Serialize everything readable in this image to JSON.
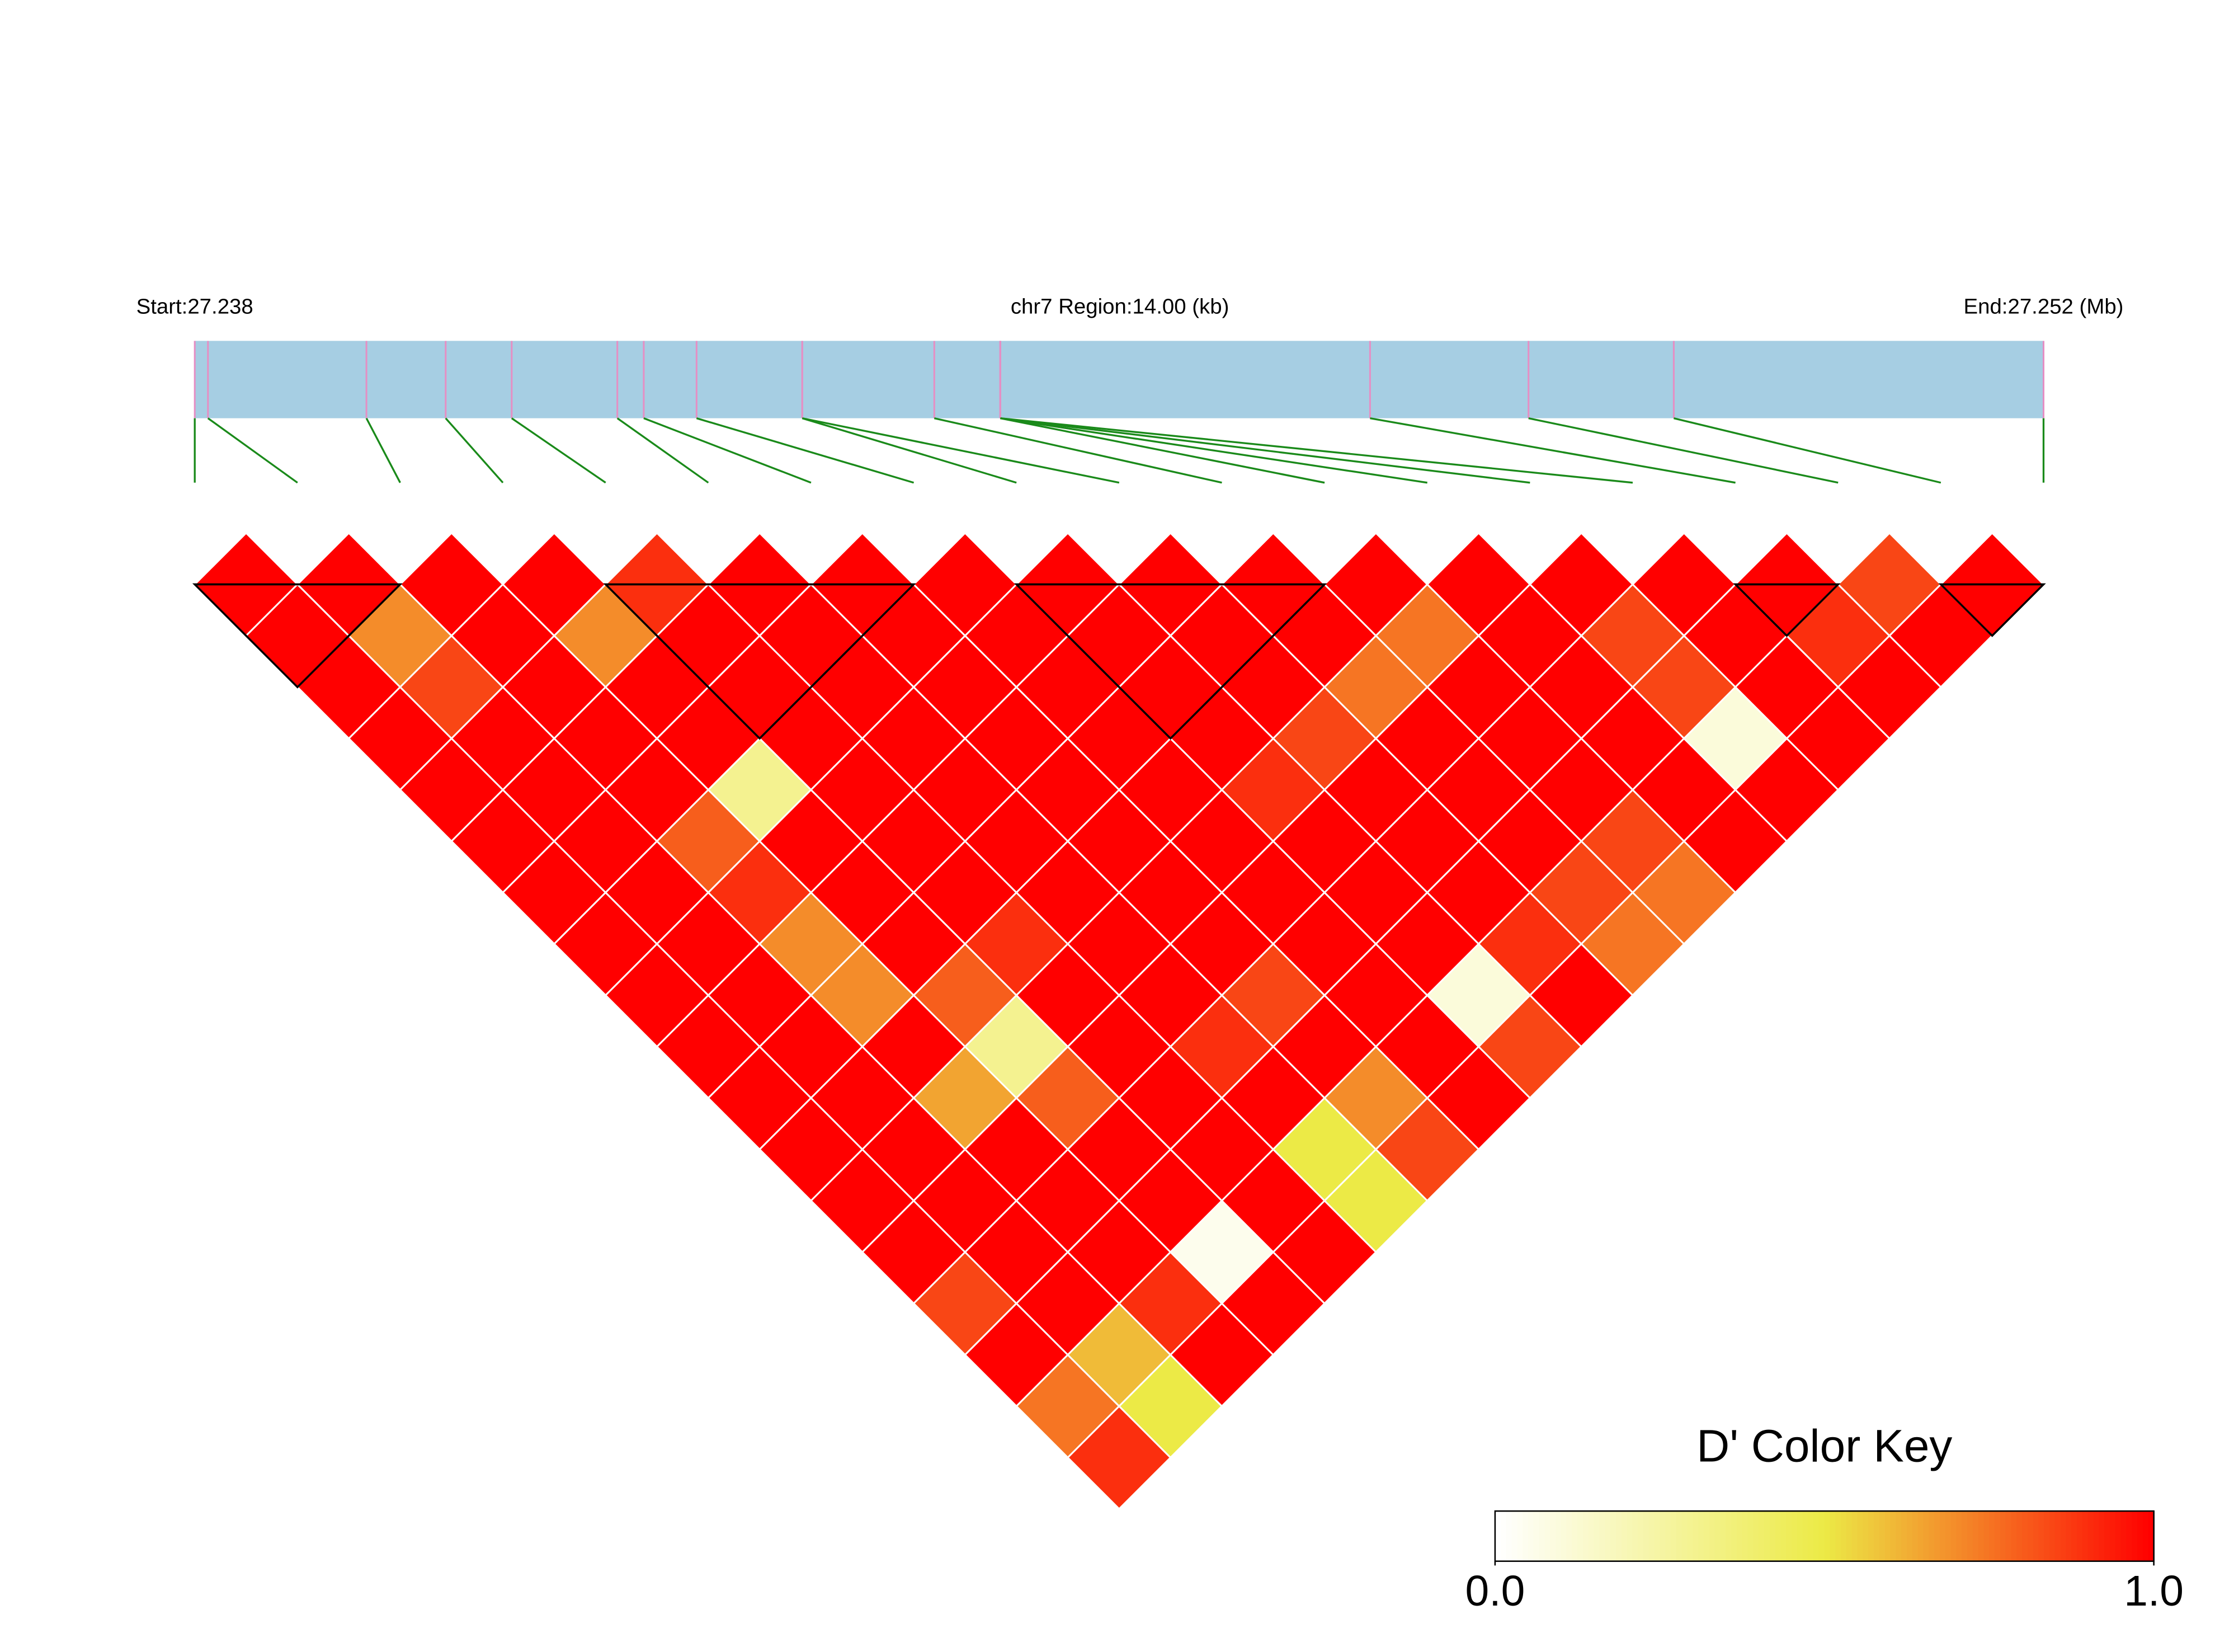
{
  "chart_data": {
    "type": "ld_heatmap",
    "title": "chr7 Region:14.00 (kb)",
    "xlim": [
      27.238,
      27.252
    ],
    "xticks": [
      {
        "value": 27.238,
        "label": "Start:27.238"
      },
      {
        "value": 27.252,
        "label": "End:27.252 (Mb)"
      }
    ],
    "snp_positions": [
      27.238,
      27.2381,
      27.2393,
      27.2399,
      27.2404,
      27.2412,
      27.2414,
      27.2418,
      27.2426,
      27.2426,
      27.2436,
      27.2441,
      27.2441,
      27.2441,
      27.2441,
      27.2469,
      27.2481,
      27.2492,
      27.252
    ],
    "dprime": [
      [
        1,
        1,
        1,
        1,
        1,
        1,
        1,
        1,
        1,
        1,
        1,
        1,
        1,
        1,
        0.85,
        1,
        0.75,
        0.9
      ],
      [
        1,
        0.7,
        0.85,
        1,
        1,
        1,
        1,
        1,
        1,
        1,
        1,
        1,
        1,
        1,
        1,
        0.6,
        0.5
      ],
      [
        1,
        1,
        1,
        1,
        1,
        0.8,
        0.9,
        0.7,
        0.7,
        1,
        0.65,
        1,
        1,
        1,
        0.9,
        1
      ],
      [
        1,
        0.7,
        1,
        1,
        0.3,
        1,
        1,
        1,
        0.8,
        0.3,
        0.8,
        1,
        1,
        0.05,
        1
      ],
      [
        0.9,
        1,
        1,
        1,
        1,
        1,
        1,
        0.9,
        1,
        1,
        1,
        1,
        1,
        1
      ],
      [
        1,
        1,
        1,
        1,
        1,
        1,
        1,
        1,
        1,
        0.9,
        1,
        0.5,
        0.5
      ],
      [
        1,
        1,
        1,
        1,
        1,
        1,
        1,
        1,
        0.85,
        1,
        0.7,
        0.85
      ],
      [
        1,
        1,
        1,
        1,
        1,
        1,
        1,
        1,
        1,
        1,
        1
      ],
      [
        1,
        1,
        1,
        1,
        0.9,
        1,
        1,
        1,
        0.1,
        0.85
      ],
      [
        1,
        1,
        1,
        0.85,
        1,
        1,
        1,
        0.9,
        1
      ],
      [
        1,
        1,
        0.75,
        1,
        1,
        1,
        0.85,
        0.75
      ],
      [
        1,
        0.75,
        1,
        1,
        1,
        0.85,
        0.75
      ],
      [
        1,
        1,
        1,
        1,
        1,
        1
      ],
      [
        1,
        0.85,
        0.85,
        0.1,
        1
      ],
      [
        1,
        1,
        1,
        1
      ],
      [
        1,
        0.9,
        1
      ],
      [
        0.85,
        1
      ],
      [
        1
      ]
    ],
    "blocks": [
      [
        0,
        2
      ],
      [
        4,
        7
      ],
      [
        8,
        11
      ],
      [
        15,
        16
      ],
      [
        17,
        18
      ]
    ],
    "colors": [
      "#ffffff",
      "#ecea46",
      "#ff0000"
    ],
    "key_title": "D' Color Key",
    "key_ticks": [
      {
        "value": 0,
        "label": "0.0"
      },
      {
        "value": 1,
        "label": "1.0"
      }
    ]
  }
}
